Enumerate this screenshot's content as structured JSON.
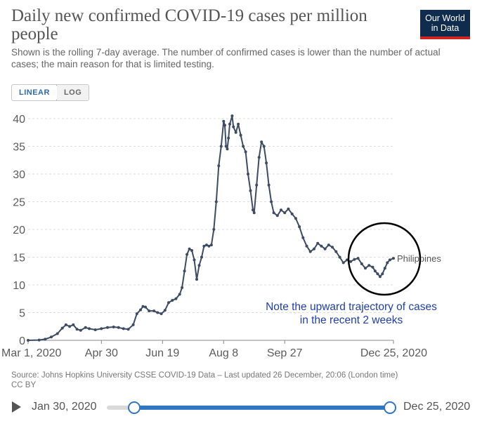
{
  "header": {
    "title": "Daily new confirmed COVID-19 cases per million people",
    "subtitle": "Shown is the rolling 7-day average. The number of confirmed cases is lower than the number of actual cases; the main reason for that is limited testing.",
    "logo_line1": "Our World",
    "logo_line2": "in Data"
  },
  "scale_toggle": {
    "linear_label": "LINEAR",
    "log_label": "LOG",
    "selected": "LINEAR"
  },
  "annotation": {
    "line1": "Note the upward trajectory of cases",
    "line2": "in the recent 2 weeks"
  },
  "footer": {
    "source": "Source: Johns Hopkins University CSSE COVID-19 Data – Last updated 26 December, 20:06 (London time)",
    "license": "CC BY"
  },
  "timeline": {
    "start_label": "Jan 30, 2020",
    "end_label": "Dec 25, 2020"
  },
  "colors": {
    "line": "#3d4b63",
    "grid": "#dddddd",
    "accent": "#3076c3",
    "note": "#1f3fb0",
    "logo": "#0f2b4e"
  },
  "chart_data": {
    "type": "line",
    "title": "Daily new confirmed COVID-19 cases per million people",
    "xlabel": "",
    "ylabel": "",
    "x_tick_labels": [
      "Mar 1, 2020",
      "Apr 30",
      "Jun 19",
      "Aug 8",
      "Sep 27",
      "Dec 25, 2020"
    ],
    "y_tick_labels": [
      "0",
      "5",
      "10",
      "15",
      "20",
      "25",
      "30",
      "35",
      "40"
    ],
    "ylim": [
      0,
      40
    ],
    "xlim": [
      "2020-03-01",
      "2020-12-25"
    ],
    "grid": "horizontal dashed",
    "series": [
      {
        "name": "Philippines",
        "points": [
          [
            "2020-03-01",
            0
          ],
          [
            "2020-03-10",
            0.05
          ],
          [
            "2020-03-15",
            0.2
          ],
          [
            "2020-03-20",
            0.6
          ],
          [
            "2020-03-25",
            1.2
          ],
          [
            "2020-03-29",
            2.2
          ],
          [
            "2020-04-01",
            2.8
          ],
          [
            "2020-04-04",
            2.5
          ],
          [
            "2020-04-07",
            2.8
          ],
          [
            "2020-04-10",
            2.0
          ],
          [
            "2020-04-13",
            1.8
          ],
          [
            "2020-04-17",
            2.3
          ],
          [
            "2020-04-20",
            2.1
          ],
          [
            "2020-04-25",
            1.9
          ],
          [
            "2020-04-30",
            2.1
          ],
          [
            "2020-05-05",
            2.3
          ],
          [
            "2020-05-10",
            2.4
          ],
          [
            "2020-05-14",
            2.3
          ],
          [
            "2020-05-18",
            2.1
          ],
          [
            "2020-05-22",
            2.0
          ],
          [
            "2020-05-26",
            2.8
          ],
          [
            "2020-05-29",
            4.8
          ],
          [
            "2020-06-01",
            5.5
          ],
          [
            "2020-06-03",
            6.1
          ],
          [
            "2020-06-05",
            6.0
          ],
          [
            "2020-06-08",
            5.3
          ],
          [
            "2020-06-12",
            5.3
          ],
          [
            "2020-06-15",
            5.0
          ],
          [
            "2020-06-18",
            4.8
          ],
          [
            "2020-06-21",
            5.4
          ],
          [
            "2020-06-24",
            6.8
          ],
          [
            "2020-06-27",
            7.2
          ],
          [
            "2020-06-30",
            7.5
          ],
          [
            "2020-07-03",
            8.3
          ],
          [
            "2020-07-05",
            9.5
          ],
          [
            "2020-07-07",
            12.5
          ],
          [
            "2020-07-09",
            15.5
          ],
          [
            "2020-07-11",
            16.5
          ],
          [
            "2020-07-13",
            16.2
          ],
          [
            "2020-07-15",
            14.5
          ],
          [
            "2020-07-17",
            11.0
          ],
          [
            "2020-07-19",
            13.5
          ],
          [
            "2020-07-21",
            15.0
          ],
          [
            "2020-07-23",
            17.0
          ],
          [
            "2020-07-25",
            17.2
          ],
          [
            "2020-07-27",
            17.0
          ],
          [
            "2020-07-29",
            17.2
          ],
          [
            "2020-07-31",
            20.0
          ],
          [
            "2020-08-02",
            25.0
          ],
          [
            "2020-08-04",
            31.5
          ],
          [
            "2020-08-06",
            35.0
          ],
          [
            "2020-08-08",
            39.5
          ],
          [
            "2020-08-09",
            38.8
          ],
          [
            "2020-08-10",
            35.0
          ],
          [
            "2020-08-11",
            34.5
          ],
          [
            "2020-08-12",
            36.5
          ],
          [
            "2020-08-13",
            39.0
          ],
          [
            "2020-08-15",
            40.5
          ],
          [
            "2020-08-16",
            38.5
          ],
          [
            "2020-08-18",
            37.5
          ],
          [
            "2020-08-20",
            39.0
          ],
          [
            "2020-08-22",
            37.0
          ],
          [
            "2020-08-24",
            35.0
          ],
          [
            "2020-08-26",
            34.0
          ],
          [
            "2020-08-28",
            30.0
          ],
          [
            "2020-08-30",
            27.0
          ],
          [
            "2020-09-01",
            23.5
          ],
          [
            "2020-09-02",
            23.0
          ],
          [
            "2020-09-04",
            28.0
          ],
          [
            "2020-09-06",
            33.0
          ],
          [
            "2020-09-08",
            35.8
          ],
          [
            "2020-09-10",
            35.0
          ],
          [
            "2020-09-12",
            32.0
          ],
          [
            "2020-09-14",
            28.0
          ],
          [
            "2020-09-16",
            25.0
          ],
          [
            "2020-09-18",
            23.0
          ],
          [
            "2020-09-21",
            22.5
          ],
          [
            "2020-09-24",
            23.5
          ],
          [
            "2020-09-27",
            23.0
          ],
          [
            "2020-09-30",
            23.7
          ],
          [
            "2020-10-03",
            22.8
          ],
          [
            "2020-10-06",
            22.0
          ],
          [
            "2020-10-09",
            20.5
          ],
          [
            "2020-10-12",
            18.5
          ],
          [
            "2020-10-15",
            17.0
          ],
          [
            "2020-10-18",
            16.0
          ],
          [
            "2020-10-21",
            16.5
          ],
          [
            "2020-10-24",
            17.5
          ],
          [
            "2020-10-27",
            17.0
          ],
          [
            "2020-10-30",
            16.5
          ],
          [
            "2020-11-02",
            17.2
          ],
          [
            "2020-11-05",
            16.8
          ],
          [
            "2020-11-08",
            16.0
          ],
          [
            "2020-11-11",
            15.0
          ],
          [
            "2020-11-14",
            14.0
          ],
          [
            "2020-11-17",
            14.5
          ],
          [
            "2020-11-20",
            14.2
          ],
          [
            "2020-11-23",
            14.6
          ],
          [
            "2020-11-26",
            14.8
          ],
          [
            "2020-11-29",
            13.8
          ],
          [
            "2020-12-02",
            13.0
          ],
          [
            "2020-12-05",
            13.5
          ],
          [
            "2020-12-08",
            13.2
          ],
          [
            "2020-12-10",
            12.5
          ],
          [
            "2020-12-12",
            12.0
          ],
          [
            "2020-12-14",
            11.5
          ],
          [
            "2020-12-16",
            12.0
          ],
          [
            "2020-12-18",
            13.0
          ],
          [
            "2020-12-20",
            14.0
          ],
          [
            "2020-12-22",
            14.5
          ],
          [
            "2020-12-25",
            14.8
          ]
        ]
      }
    ]
  }
}
